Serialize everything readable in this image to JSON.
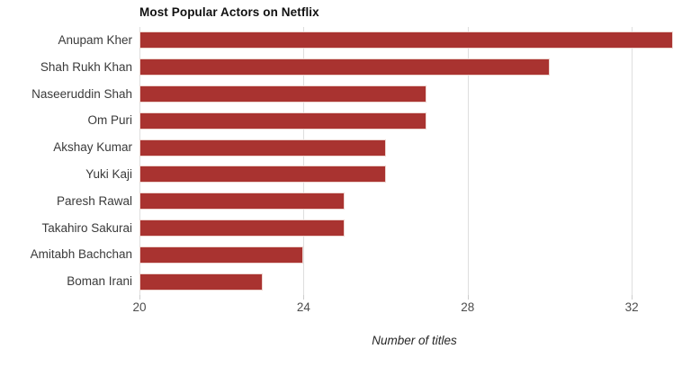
{
  "chart_data": {
    "type": "bar",
    "orientation": "horizontal",
    "title": "Most Popular Actors on Netflix",
    "xlabel": "Number of titles",
    "ylabel": "",
    "categories": [
      "Anupam Kher",
      "Shah Rukh Khan",
      "Naseeruddin Shah",
      "Om Puri",
      "Akshay Kumar",
      "Yuki Kaji",
      "Paresh Rawal",
      "Takahiro Sakurai",
      "Amitabh Bachchan",
      "Boman Irani"
    ],
    "values": [
      33,
      30,
      27,
      27,
      26,
      26,
      25,
      25,
      24,
      23
    ],
    "xlim": [
      20,
      33.4
    ],
    "xticks": [
      20,
      24,
      28,
      32
    ],
    "grid": true,
    "legend": "none",
    "bar_color": "#a93330",
    "bar_edge_color": "#eed6d1",
    "gridline_color": "#dedede"
  }
}
